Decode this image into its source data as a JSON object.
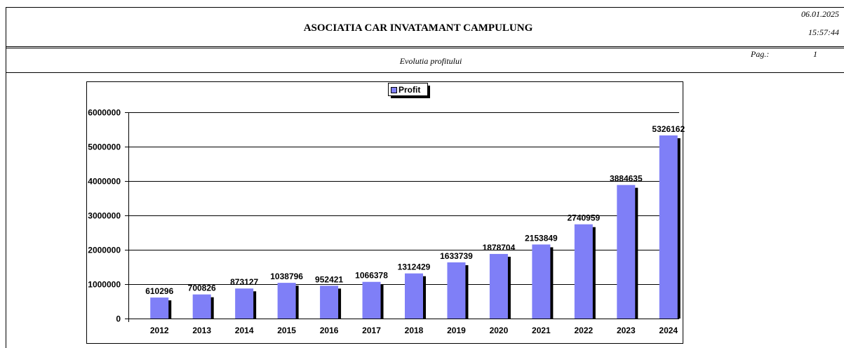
{
  "header": {
    "title": "ASOCIATIA CAR INVATAMANT CAMPULUNG",
    "date": "06.01.2025",
    "time": "15:57:44",
    "subtitle": "Evolutia profitului",
    "page_label": "Pag.:",
    "page_number": "1"
  },
  "chart_data": {
    "type": "bar",
    "categories": [
      "2012",
      "2013",
      "2014",
      "2015",
      "2016",
      "2017",
      "2018",
      "2019",
      "2020",
      "2021",
      "2022",
      "2023",
      "2024"
    ],
    "series": [
      {
        "name": "Profit",
        "color": "#7f7ff7",
        "values": [
          610296,
          700826,
          873127,
          1038796,
          952421,
          1066378,
          1312429,
          1633739,
          1878704,
          2153849,
          2740959,
          3884635,
          5326162
        ]
      }
    ],
    "ylim": [
      0,
      6000000
    ],
    "yticks": [
      0,
      1000000,
      2000000,
      3000000,
      4000000,
      5000000,
      6000000
    ],
    "grid": true,
    "legend": "top"
  }
}
